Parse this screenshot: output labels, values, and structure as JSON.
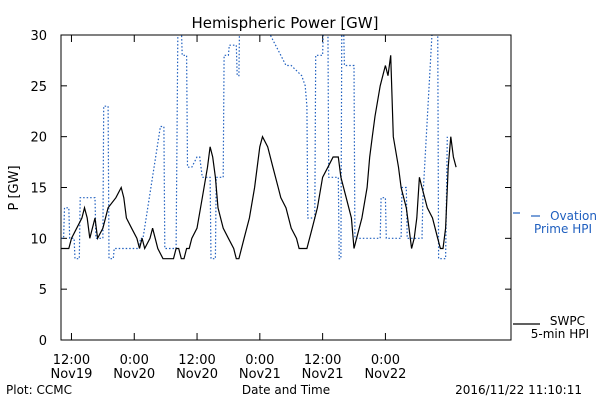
{
  "chart_data": {
    "type": "line",
    "title": "Hemispheric Power [GW]",
    "xlabel": "Date and Time",
    "ylabel": "P [GW]",
    "ylim": [
      0,
      30
    ],
    "yticks": [
      0,
      5,
      10,
      15,
      20,
      25,
      30
    ],
    "xlim": [
      "2016-11-19 10:00",
      "2016-11-23 00:00"
    ],
    "xticks": [
      {
        "time": "2016-11-19 12:00",
        "line1": "12:00",
        "line2": "Nov19"
      },
      {
        "time": "2016-11-20 00:00",
        "line1": "0:00",
        "line2": "Nov20"
      },
      {
        "time": "2016-11-20 12:00",
        "line1": "12:00",
        "line2": "Nov20"
      },
      {
        "time": "2016-11-21 00:00",
        "line1": "0:00",
        "line2": "Nov21"
      },
      {
        "time": "2016-11-21 12:00",
        "line1": "12:00",
        "line2": "Nov21"
      },
      {
        "time": "2016-11-22 00:00",
        "line1": "0:00",
        "line2": "Nov22"
      }
    ],
    "grid": false,
    "legend": "right",
    "series": [
      {
        "name": "Ovation Prime HPI",
        "legend_lines": [
          "Ovation",
          "Prime HPI"
        ],
        "style": "dotted",
        "color": "#1f5fbf",
        "points": [
          [
            "2016-11-19 10:00",
            10
          ],
          [
            "2016-11-19 10:30",
            10
          ],
          [
            "2016-11-19 10:40",
            13
          ],
          [
            "2016-11-19 11:30",
            13
          ],
          [
            "2016-11-19 11:40",
            10
          ],
          [
            "2016-11-19 12:30",
            10
          ],
          [
            "2016-11-19 12:40",
            8
          ],
          [
            "2016-11-19 13:30",
            8
          ],
          [
            "2016-11-19 13:40",
            14
          ],
          [
            "2016-11-19 16:30",
            14
          ],
          [
            "2016-11-19 16:40",
            10
          ],
          [
            "2016-11-19 18:00",
            10
          ],
          [
            "2016-11-19 18:10",
            23
          ],
          [
            "2016-11-19 19:00",
            23
          ],
          [
            "2016-11-19 19:10",
            8
          ],
          [
            "2016-11-19 20:00",
            8
          ],
          [
            "2016-11-19 20:10",
            9
          ],
          [
            "2016-11-20 01:00",
            9
          ],
          [
            "2016-11-20 01:10",
            10
          ],
          [
            "2016-11-20 01:40",
            10
          ],
          [
            "2016-11-20 05:00",
            21
          ],
          [
            "2016-11-20 05:40",
            21
          ],
          [
            "2016-11-20 05:50",
            9
          ],
          [
            "2016-11-20 08:00",
            9
          ],
          [
            "2016-11-20 08:20",
            31
          ],
          [
            "2016-11-20 09:00",
            31
          ],
          [
            "2016-11-20 09:10",
            28
          ],
          [
            "2016-11-20 10:00",
            28
          ],
          [
            "2016-11-20 10:10",
            17
          ],
          [
            "2016-11-20 11:00",
            17
          ],
          [
            "2016-11-20 12:00",
            18
          ],
          [
            "2016-11-20 12:30",
            18
          ],
          [
            "2016-11-20 13:00",
            16
          ],
          [
            "2016-11-20 14:30",
            16
          ],
          [
            "2016-11-20 14:40",
            8
          ],
          [
            "2016-11-20 15:30",
            8
          ],
          [
            "2016-11-20 15:40",
            16
          ],
          [
            "2016-11-20 17:00",
            16
          ],
          [
            "2016-11-20 17:10",
            28
          ],
          [
            "2016-11-20 18:00",
            28
          ],
          [
            "2016-11-20 18:10",
            29
          ],
          [
            "2016-11-20 19:30",
            29
          ],
          [
            "2016-11-20 19:40",
            26
          ],
          [
            "2016-11-20 20:00",
            26
          ],
          [
            "2016-11-20 20:10",
            33
          ],
          [
            "2016-11-21 02:00",
            30
          ],
          [
            "2016-11-21 04:00",
            28
          ],
          [
            "2016-11-21 05:00",
            27
          ],
          [
            "2016-11-21 06:00",
            27
          ],
          [
            "2016-11-21 08:00",
            26
          ],
          [
            "2016-11-21 08:40",
            25
          ],
          [
            "2016-11-21 09:00",
            23
          ],
          [
            "2016-11-21 09:10",
            12
          ],
          [
            "2016-11-21 10:30",
            12
          ],
          [
            "2016-11-21 10:40",
            28
          ],
          [
            "2016-11-21 12:00",
            28
          ],
          [
            "2016-11-21 12:10",
            31
          ],
          [
            "2016-11-21 13:00",
            31
          ],
          [
            "2016-11-21 13:10",
            16
          ],
          [
            "2016-11-21 15:00",
            16
          ],
          [
            "2016-11-21 15:10",
            8
          ],
          [
            "2016-11-21 15:30",
            8
          ],
          [
            "2016-11-21 15:40",
            31
          ],
          [
            "2016-11-21 16:00",
            31
          ],
          [
            "2016-11-21 16:10",
            27
          ],
          [
            "2016-11-21 18:00",
            27
          ],
          [
            "2016-11-21 18:10",
            10
          ],
          [
            "2016-11-21 23:00",
            10
          ],
          [
            "2016-11-21 23:10",
            14
          ],
          [
            "2016-11-22 00:00",
            14
          ],
          [
            "2016-11-22 00:10",
            10
          ],
          [
            "2016-11-22 03:00",
            10
          ],
          [
            "2016-11-22 03:10",
            15
          ],
          [
            "2016-11-22 04:00",
            15
          ],
          [
            "2016-11-22 04:10",
            10
          ],
          [
            "2016-11-22 07:00",
            10
          ],
          [
            "2016-11-22 07:10",
            14
          ],
          [
            "2016-11-22 09:00",
            31
          ],
          [
            "2016-11-22 10:00",
            31
          ],
          [
            "2016-11-22 10:10",
            8
          ],
          [
            "2016-11-22 11:30",
            8
          ],
          [
            "2016-11-22 11:50",
            20
          ]
        ]
      },
      {
        "name": "SWPC 5-min HPI",
        "legend_lines": [
          "SWPC",
          "5-min HPI"
        ],
        "style": "solid",
        "color": "#000000",
        "points": [
          [
            "2016-11-19 10:00",
            9
          ],
          [
            "2016-11-19 11:30",
            9
          ],
          [
            "2016-11-19 12:00",
            10
          ],
          [
            "2016-11-19 13:00",
            11
          ],
          [
            "2016-11-19 14:00",
            12
          ],
          [
            "2016-11-19 14:30",
            13
          ],
          [
            "2016-11-19 15:00",
            12
          ],
          [
            "2016-11-19 15:30",
            10
          ],
          [
            "2016-11-19 16:30",
            12
          ],
          [
            "2016-11-19 17:00",
            10
          ],
          [
            "2016-11-19 18:00",
            11
          ],
          [
            "2016-11-19 19:00",
            13
          ],
          [
            "2016-11-19 20:30",
            14
          ],
          [
            "2016-11-19 21:30",
            15
          ],
          [
            "2016-11-19 22:00",
            14
          ],
          [
            "2016-11-19 22:30",
            12
          ],
          [
            "2016-11-19 23:30",
            11
          ],
          [
            "2016-11-20 00:30",
            10
          ],
          [
            "2016-11-20 01:00",
            9
          ],
          [
            "2016-11-20 01:30",
            10
          ],
          [
            "2016-11-20 02:00",
            9
          ],
          [
            "2016-11-20 03:00",
            10
          ],
          [
            "2016-11-20 03:30",
            11
          ],
          [
            "2016-11-20 04:00",
            10
          ],
          [
            "2016-11-20 04:30",
            9
          ],
          [
            "2016-11-20 05:30",
            8
          ],
          [
            "2016-11-20 07:30",
            8
          ],
          [
            "2016-11-20 08:00",
            9
          ],
          [
            "2016-11-20 08:30",
            9
          ],
          [
            "2016-11-20 09:00",
            8
          ],
          [
            "2016-11-20 09:30",
            8
          ],
          [
            "2016-11-20 10:00",
            9
          ],
          [
            "2016-11-20 10:30",
            9
          ],
          [
            "2016-11-20 11:00",
            10
          ],
          [
            "2016-11-20 12:00",
            11
          ],
          [
            "2016-11-20 13:00",
            14
          ],
          [
            "2016-11-20 14:00",
            17
          ],
          [
            "2016-11-20 14:30",
            19
          ],
          [
            "2016-11-20 15:00",
            18
          ],
          [
            "2016-11-20 15:30",
            16
          ],
          [
            "2016-11-20 16:00",
            13
          ],
          [
            "2016-11-20 17:00",
            11
          ],
          [
            "2016-11-20 18:00",
            10
          ],
          [
            "2016-11-20 19:00",
            9
          ],
          [
            "2016-11-20 19:30",
            8
          ],
          [
            "2016-11-20 20:00",
            8
          ],
          [
            "2016-11-20 21:00",
            10
          ],
          [
            "2016-11-20 22:00",
            12
          ],
          [
            "2016-11-20 23:00",
            15
          ],
          [
            "2016-11-21 00:00",
            19
          ],
          [
            "2016-11-21 00:30",
            20
          ],
          [
            "2016-11-21 01:30",
            19
          ],
          [
            "2016-11-21 02:30",
            17
          ],
          [
            "2016-11-21 03:30",
            15
          ],
          [
            "2016-11-21 04:00",
            14
          ],
          [
            "2016-11-21 05:00",
            13
          ],
          [
            "2016-11-21 06:00",
            11
          ],
          [
            "2016-11-21 07:00",
            10
          ],
          [
            "2016-11-21 07:30",
            9
          ],
          [
            "2016-11-21 09:00",
            9
          ],
          [
            "2016-11-21 10:00",
            11
          ],
          [
            "2016-11-21 11:00",
            13
          ],
          [
            "2016-11-21 12:00",
            16
          ],
          [
            "2016-11-21 13:00",
            17
          ],
          [
            "2016-11-21 14:00",
            18
          ],
          [
            "2016-11-21 15:00",
            18
          ],
          [
            "2016-11-21 15:30",
            16
          ],
          [
            "2016-11-21 16:30",
            14
          ],
          [
            "2016-11-21 17:30",
            12
          ],
          [
            "2016-11-21 18:00",
            9
          ],
          [
            "2016-11-21 18:30",
            10
          ],
          [
            "2016-11-21 19:30",
            12
          ],
          [
            "2016-11-21 20:30",
            15
          ],
          [
            "2016-11-21 21:00",
            18
          ],
          [
            "2016-11-21 21:30",
            20
          ],
          [
            "2016-11-21 22:00",
            22
          ],
          [
            "2016-11-21 23:00",
            25
          ],
          [
            "2016-11-22 00:00",
            27
          ],
          [
            "2016-11-22 00:30",
            26
          ],
          [
            "2016-11-22 01:00",
            28
          ],
          [
            "2016-11-22 01:30",
            20
          ],
          [
            "2016-11-22 02:30",
            17
          ],
          [
            "2016-11-22 03:00",
            15
          ],
          [
            "2016-11-22 04:00",
            13
          ],
          [
            "2016-11-22 04:30",
            11
          ],
          [
            "2016-11-22 05:00",
            9
          ],
          [
            "2016-11-22 05:30",
            10
          ],
          [
            "2016-11-22 06:00",
            12
          ],
          [
            "2016-11-22 06:30",
            16
          ],
          [
            "2016-11-22 07:00",
            15
          ],
          [
            "2016-11-22 08:00",
            13
          ],
          [
            "2016-11-22 09:00",
            12
          ],
          [
            "2016-11-22 10:00",
            10
          ],
          [
            "2016-11-22 10:30",
            9
          ],
          [
            "2016-11-22 11:00",
            9
          ],
          [
            "2016-11-22 11:30",
            11
          ],
          [
            "2016-11-22 12:00",
            17
          ],
          [
            "2016-11-22 12:30",
            20
          ],
          [
            "2016-11-22 13:00",
            18
          ],
          [
            "2016-11-22 13:30",
            17
          ]
        ]
      }
    ]
  },
  "footer": {
    "left": "Plot: CCMC",
    "right": "2016/11/22 11:10:11"
  },
  "colors": {
    "ovation": "#1f5fbf",
    "swpc": "#000000"
  }
}
